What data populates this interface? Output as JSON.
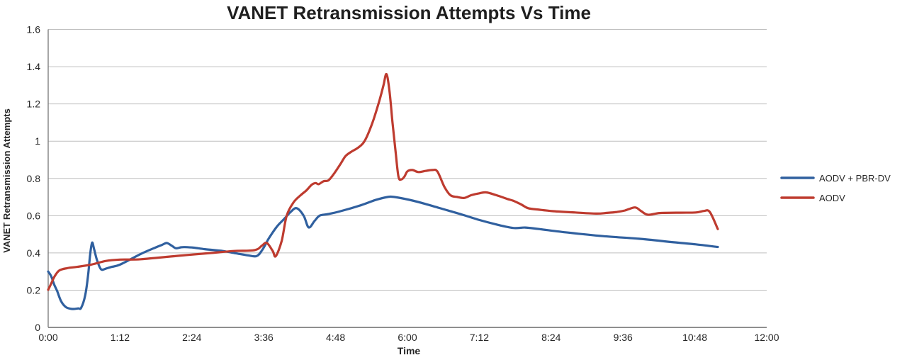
{
  "title": "VANET Retransmission Attempts Vs Time",
  "axes": {
    "x_label": "Time",
    "y_label": "VANET Retransmission Attempts"
  },
  "legend": {
    "position": "right",
    "items": [
      "AODV + PBR-DV",
      "AODV"
    ]
  },
  "chart_data": {
    "type": "line",
    "title": "VANET Retransmission Attempts Vs Time",
    "xlabel": "Time",
    "ylabel": "VANET Retransmission Attempts",
    "x_unit": "minutes",
    "x_max": 720,
    "y_max": 1.6,
    "grid": true,
    "legend_position": "right",
    "x_ticks": [
      {
        "t": 0,
        "label": "0:00"
      },
      {
        "t": 72,
        "label": "1:12"
      },
      {
        "t": 144,
        "label": "2:24"
      },
      {
        "t": 216,
        "label": "3:36"
      },
      {
        "t": 288,
        "label": "4:48"
      },
      {
        "t": 360,
        "label": "6:00"
      },
      {
        "t": 432,
        "label": "7:12"
      },
      {
        "t": 504,
        "label": "8:24"
      },
      {
        "t": 576,
        "label": "9:36"
      },
      {
        "t": 648,
        "label": "10:48"
      },
      {
        "t": 720,
        "label": "12:00"
      }
    ],
    "y_ticks": [
      {
        "v": 0,
        "label": "0"
      },
      {
        "v": 0.2,
        "label": "0.2"
      },
      {
        "v": 0.4,
        "label": "0.4"
      },
      {
        "v": 0.6,
        "label": "0.6"
      },
      {
        "v": 0.8,
        "label": "0.8"
      },
      {
        "v": 1,
        "label": "1"
      },
      {
        "v": 1.2,
        "label": "1.2"
      },
      {
        "v": 1.4,
        "label": "1.4"
      },
      {
        "v": 1.6,
        "label": "1.6"
      }
    ],
    "colors": {
      "gridline": "#BFBFBF",
      "axis": "#7F7F7F",
      "text": "#262626",
      "title": "#1F1F1F"
    },
    "series": [
      {
        "name": "AODV + PBR-DV",
        "color": "#30609F",
        "points": [
          [
            0,
            0.3
          ],
          [
            3,
            0.275
          ],
          [
            6,
            0.23
          ],
          [
            9,
            0.195
          ],
          [
            13,
            0.14
          ],
          [
            18,
            0.108
          ],
          [
            24,
            0.099
          ],
          [
            30,
            0.102
          ],
          [
            33,
            0.105
          ],
          [
            37,
            0.17
          ],
          [
            40,
            0.28
          ],
          [
            42,
            0.39
          ],
          [
            44,
            0.455
          ],
          [
            46,
            0.42
          ],
          [
            49,
            0.36
          ],
          [
            53,
            0.312
          ],
          [
            58,
            0.316
          ],
          [
            63,
            0.324
          ],
          [
            72,
            0.337
          ],
          [
            93,
            0.395
          ],
          [
            108,
            0.43
          ],
          [
            114,
            0.443
          ],
          [
            119,
            0.453
          ],
          [
            124,
            0.438
          ],
          [
            128,
            0.425
          ],
          [
            133,
            0.43
          ],
          [
            137,
            0.431
          ],
          [
            146,
            0.428
          ],
          [
            157,
            0.42
          ],
          [
            175,
            0.41
          ],
          [
            188,
            0.398
          ],
          [
            200,
            0.387
          ],
          [
            209,
            0.383
          ],
          [
            215,
            0.42
          ],
          [
            221,
            0.477
          ],
          [
            229,
            0.54
          ],
          [
            236,
            0.58
          ],
          [
            243,
            0.62
          ],
          [
            249,
            0.64
          ],
          [
            256,
            0.6
          ],
          [
            261,
            0.537
          ],
          [
            267,
            0.572
          ],
          [
            272,
            0.6
          ],
          [
            280,
            0.608
          ],
          [
            293,
            0.624
          ],
          [
            314,
            0.657
          ],
          [
            328,
            0.684
          ],
          [
            340,
            0.7
          ],
          [
            347,
            0.7
          ],
          [
            362,
            0.685
          ],
          [
            378,
            0.663
          ],
          [
            392,
            0.641
          ],
          [
            414,
            0.607
          ],
          [
            430,
            0.58
          ],
          [
            449,
            0.553
          ],
          [
            466,
            0.534
          ],
          [
            478,
            0.536
          ],
          [
            492,
            0.528
          ],
          [
            521,
            0.509
          ],
          [
            556,
            0.49
          ],
          [
            592,
            0.476
          ],
          [
            627,
            0.457
          ],
          [
            649,
            0.446
          ],
          [
            671,
            0.432
          ]
        ]
      },
      {
        "name": "AODV",
        "color": "#BE3B2F",
        "points": [
          [
            0,
            0.202
          ],
          [
            3,
            0.235
          ],
          [
            6,
            0.27
          ],
          [
            11,
            0.305
          ],
          [
            19,
            0.318
          ],
          [
            29,
            0.325
          ],
          [
            43,
            0.337
          ],
          [
            58,
            0.357
          ],
          [
            72,
            0.364
          ],
          [
            93,
            0.366
          ],
          [
            129,
            0.384
          ],
          [
            164,
            0.4
          ],
          [
            186,
            0.41
          ],
          [
            207,
            0.415
          ],
          [
            214,
            0.438
          ],
          [
            219,
            0.454
          ],
          [
            225,
            0.41
          ],
          [
            228,
            0.382
          ],
          [
            234,
            0.465
          ],
          [
            239,
            0.6
          ],
          [
            246,
            0.672
          ],
          [
            253,
            0.71
          ],
          [
            259,
            0.737
          ],
          [
            264,
            0.766
          ],
          [
            268,
            0.775
          ],
          [
            271,
            0.769
          ],
          [
            276,
            0.785
          ],
          [
            281,
            0.79
          ],
          [
            287,
            0.83
          ],
          [
            293,
            0.878
          ],
          [
            298,
            0.92
          ],
          [
            304,
            0.944
          ],
          [
            310,
            0.963
          ],
          [
            317,
            1.0
          ],
          [
            325,
            1.1
          ],
          [
            332,
            1.22
          ],
          [
            336,
            1.3
          ],
          [
            339,
            1.36
          ],
          [
            342,
            1.27
          ],
          [
            345,
            1.1
          ],
          [
            348,
            0.95
          ],
          [
            351,
            0.81
          ],
          [
            354,
            0.795
          ],
          [
            357,
            0.81
          ],
          [
            360,
            0.838
          ],
          [
            365,
            0.845
          ],
          [
            371,
            0.834
          ],
          [
            378,
            0.84
          ],
          [
            385,
            0.845
          ],
          [
            390,
            0.837
          ],
          [
            397,
            0.755
          ],
          [
            403,
            0.71
          ],
          [
            410,
            0.7
          ],
          [
            417,
            0.695
          ],
          [
            424,
            0.71
          ],
          [
            432,
            0.72
          ],
          [
            439,
            0.725
          ],
          [
            449,
            0.71
          ],
          [
            460,
            0.69
          ],
          [
            466,
            0.68
          ],
          [
            474,
            0.66
          ],
          [
            481,
            0.64
          ],
          [
            492,
            0.632
          ],
          [
            506,
            0.624
          ],
          [
            528,
            0.617
          ],
          [
            549,
            0.611
          ],
          [
            560,
            0.615
          ],
          [
            570,
            0.62
          ],
          [
            578,
            0.628
          ],
          [
            588,
            0.644
          ],
          [
            594,
            0.625
          ],
          [
            601,
            0.605
          ],
          [
            613,
            0.614
          ],
          [
            634,
            0.616
          ],
          [
            649,
            0.617
          ],
          [
            657,
            0.625
          ],
          [
            663,
            0.62
          ],
          [
            671,
            0.528
          ]
        ]
      }
    ]
  }
}
